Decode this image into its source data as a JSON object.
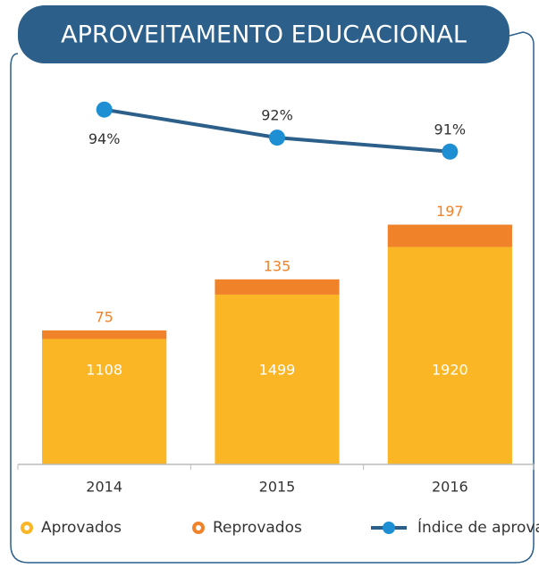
{
  "chart_data": {
    "type": "bar",
    "title": "APROVEITAMENTO EDUCACIONAL",
    "categories": [
      "2014",
      "2015",
      "2016"
    ],
    "series": [
      {
        "name": "Aprovados",
        "color": "#fbb625",
        "values": [
          1108,
          1499,
          1920
        ]
      },
      {
        "name": "Reprovados",
        "color": "#f0822a",
        "values": [
          75,
          135,
          197
        ]
      },
      {
        "name": "Índice de aprovados",
        "type": "line",
        "axis": "y2",
        "color": "#2c5f8a",
        "marker_color": "#1f8fd4",
        "values": [
          94,
          92,
          91
        ],
        "value_labels": [
          "94%",
          "92%",
          "91%"
        ]
      }
    ],
    "ylim": [
      0,
      2500
    ],
    "y2lim": [
      85,
      95
    ]
  }
}
